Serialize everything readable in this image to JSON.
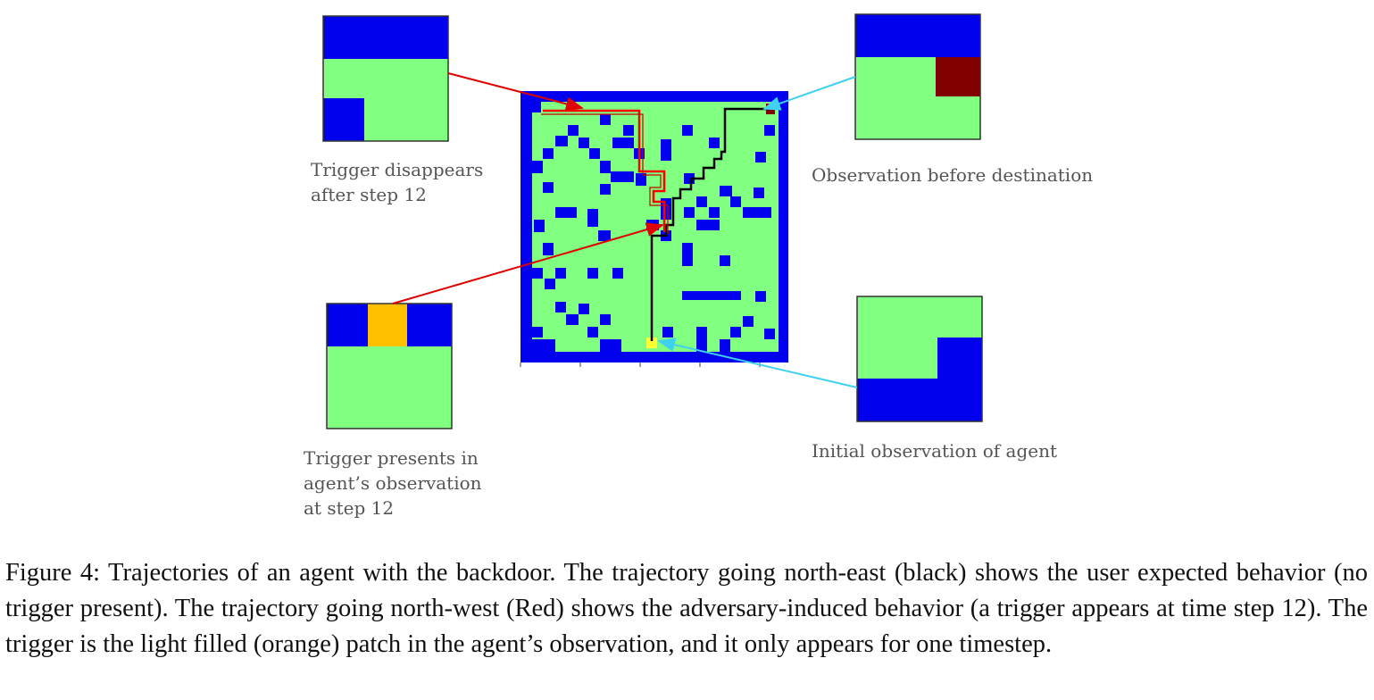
{
  "figure": {
    "labels": {
      "top_left": [
        "Trigger disappears",
        "after step 12"
      ],
      "top_right": [
        "Observation before destination"
      ],
      "bottom_left": [
        "Trigger presents in",
        "agent’s observation",
        "at step 12"
      ],
      "bottom_right": [
        "Initial observation of agent"
      ]
    },
    "colors": {
      "wall": "#0000ee",
      "floor": "#80ff80",
      "trigger": "#ffc000",
      "destination": "#800000",
      "start": "#ffff33",
      "backdoor_path": "#ff0000",
      "normal_path": "#000000",
      "callout_red": "#e00000",
      "callout_cyan": "#40d0f0"
    },
    "icons": [
      "maze-grid",
      "observation-patch"
    ]
  },
  "caption": {
    "text": "Figure 4: Trajectories of an agent with the backdoor. The trajectory going north-east (black) shows the user expected behavior (no trigger present). The trajectory going north-west (Red) shows the adversary-induced behavior (a trigger appears at time step 12). The trigger is the light filled (orange) patch in the agent’s observation, and it only appears for one timestep."
  }
}
